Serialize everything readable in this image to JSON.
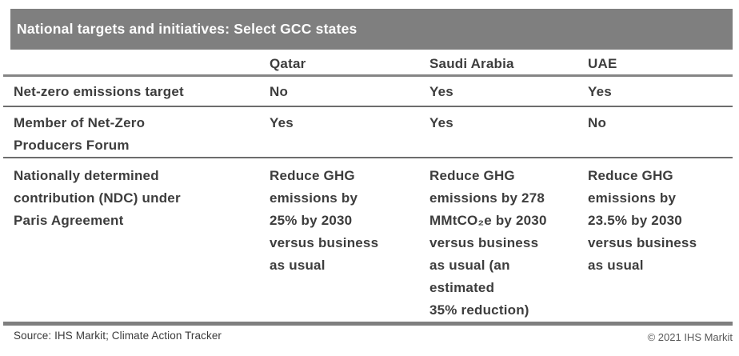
{
  "title": "National targets and initiatives: Select GCC states",
  "table": {
    "col_headers": [
      "Qatar",
      "Saudi Arabia",
      "UAE"
    ],
    "rows": [
      {
        "label": "Net-zero emissions target",
        "cells": [
          "No",
          "Yes",
          "Yes"
        ]
      },
      {
        "label": "Member of Net-Zero\nProducers Forum",
        "cells": [
          "Yes",
          "Yes",
          "No"
        ]
      },
      {
        "label": "Nationally determined\ncontribution (NDC) under\nParis Agreement",
        "cells": [
          "Reduce GHG\nemissions by\n25% by 2030\nversus business\nas usual",
          "Reduce GHG\nemissions by 278\nMMtCO₂e by 2030\nversus business\nas usual (an\nestimated\n35% reduction)",
          "Reduce GHG\nemissions by\n23.5% by 2030\nversus business\nas usual"
        ]
      }
    ]
  },
  "footer": {
    "source": "Source: IHS Markit; Climate Action Tracker",
    "copyright": "© 2021 IHS Markit"
  },
  "colors": {
    "title_bar_bg": "#7f7f7f",
    "title_text": "#ffffff",
    "body_text": "#3d3d3d",
    "rule_gray": "#7f7f7f"
  }
}
